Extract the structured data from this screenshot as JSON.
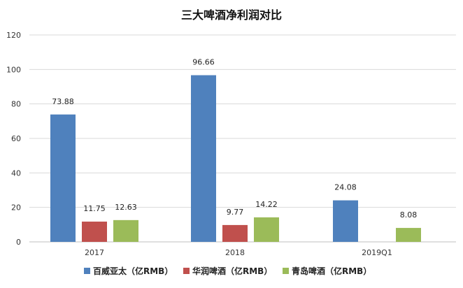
{
  "chart_data": {
    "type": "bar",
    "title": "三大啤酒净利润对比",
    "categories": [
      "2017",
      "2018",
      "2019Q1"
    ],
    "series": [
      {
        "name": "百威亚太（亿RMB）",
        "color": "#4f81bd",
        "values": [
          73.88,
          96.66,
          24.08
        ]
      },
      {
        "name": "华润啤酒（亿RMB）",
        "color": "#c0504d",
        "values": [
          11.75,
          9.77,
          null
        ]
      },
      {
        "name": "青岛啤酒（亿RMB）",
        "color": "#9bbb59",
        "values": [
          12.63,
          14.22,
          8.08
        ]
      }
    ],
    "ylim": [
      0,
      120
    ],
    "yticks": [
      0,
      20,
      40,
      60,
      80,
      100,
      120
    ],
    "grid": true,
    "legend": "bottom"
  }
}
